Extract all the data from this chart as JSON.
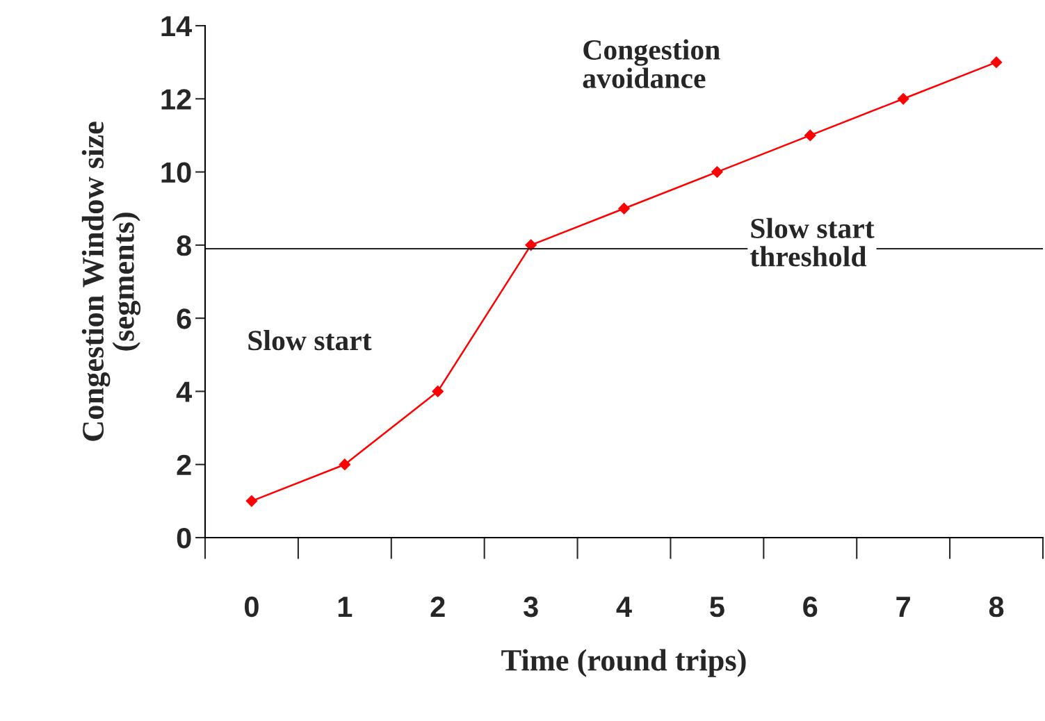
{
  "chart_data": {
    "type": "line",
    "xlabel": "Time (round trips)",
    "ylabel": "Congestion Window size\n(segments)",
    "categories": [
      "0",
      "1",
      "2",
      "3",
      "4",
      "5",
      "6",
      "7",
      "8"
    ],
    "series": [
      {
        "color": "#ff0000",
        "values": [
          1,
          2,
          4,
          8,
          9,
          10,
          11,
          12,
          13
        ]
      }
    ],
    "ylim": [
      0,
      14
    ],
    "yticks": [
      0,
      2,
      4,
      6,
      8,
      10,
      12,
      14
    ],
    "marker": "diamond",
    "line_style": "solid",
    "grid": false,
    "legend": false,
    "ref_lines": [
      {
        "axis": "y",
        "value": 7.9,
        "label": "Slow start\nthreshold",
        "color": "#000000"
      }
    ],
    "annotations": [
      "Slow start",
      "Congestion\navoidance"
    ]
  }
}
